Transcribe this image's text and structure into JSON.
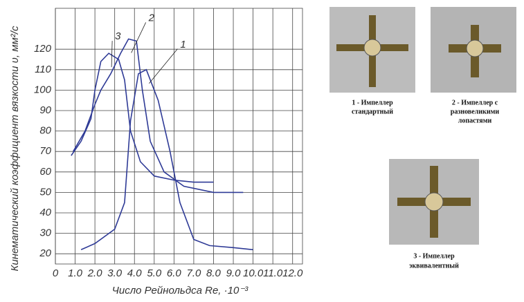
{
  "chart_data": {
    "type": "line",
    "y_label": "Кинематический коэффициент вязкости υ, мм²/с",
    "x_label": "Число Рейнольдса Re, ·10⁻³",
    "xlim": [
      0,
      12.5
    ],
    "ylim": [
      15,
      140
    ],
    "xticks": [
      0,
      {
        "value": 1,
        "label": "1.0"
      },
      {
        "value": 2,
        "label": "2.0"
      },
      {
        "value": 3,
        "label": "3.0"
      },
      {
        "value": 4,
        "label": "4.0"
      },
      {
        "value": 5,
        "label": "5.0"
      },
      {
        "value": 6,
        "label": "6.0"
      },
      {
        "value": 7,
        "label": "7.0"
      },
      {
        "value": 8,
        "label": "8.0"
      },
      {
        "value": 9,
        "label": "9.0"
      },
      {
        "value": 10,
        "label": "10.0"
      },
      {
        "value": 11,
        "label": "11.0"
      },
      {
        "value": 12,
        "label": "12.0"
      }
    ],
    "yticks": [
      20,
      30,
      40,
      50,
      60,
      70,
      80,
      90,
      100,
      110,
      120
    ],
    "grid": true,
    "series": [
      {
        "name": "1",
        "color": "#2e3a96",
        "x": [
          1.3,
          2.0,
          3.0,
          3.5,
          3.8,
          4.2,
          4.6,
          5.2,
          5.8,
          6.3,
          7.0,
          7.8,
          9.0,
          10.0
        ],
        "values": [
          22,
          25,
          32,
          45,
          85,
          108,
          110,
          95,
          70,
          45,
          27,
          24,
          23,
          22
        ]
      },
      {
        "name": "2",
        "color": "#2e3a96",
        "x": [
          0.9,
          1.5,
          2.0,
          2.3,
          2.8,
          3.3,
          3.7,
          4.1,
          4.4,
          4.8,
          5.5,
          6.5,
          8.0,
          9.5
        ],
        "values": [
          70,
          80,
          93,
          100,
          108,
          118,
          125,
          124,
          100,
          75,
          60,
          53,
          50,
          50
        ]
      },
      {
        "name": "3",
        "color": "#2e3a96",
        "x": [
          0.8,
          1.3,
          1.8,
          2.0,
          2.3,
          2.7,
          3.2,
          3.5,
          3.8,
          4.3,
          5.0,
          6.0,
          7.0,
          8.0
        ],
        "values": [
          68,
          75,
          86,
          100,
          114,
          118,
          115,
          105,
          80,
          65,
          58,
          56,
          55,
          55
        ]
      }
    ]
  },
  "figures": [
    {
      "caption_line1": "1 - Импеллер",
      "caption_line2": "стандартный"
    },
    {
      "caption_line1": "2 - Импеллер с",
      "caption_line2": "разновеликими",
      "caption_line3": "лопастями"
    },
    {
      "caption_line1": "3 - Импеллер",
      "caption_line2": "эквивалентный"
    }
  ]
}
